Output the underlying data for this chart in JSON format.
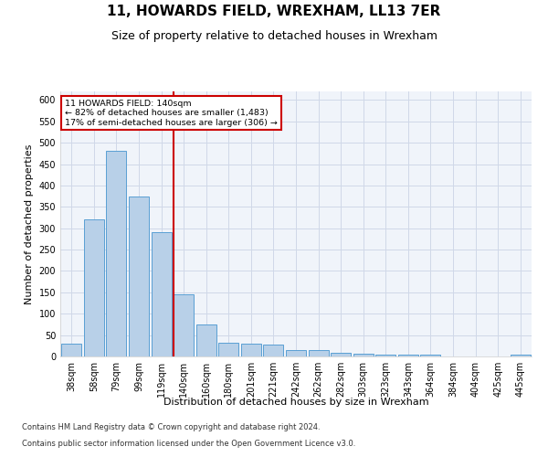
{
  "title": "11, HOWARDS FIELD, WREXHAM, LL13 7ER",
  "subtitle": "Size of property relative to detached houses in Wrexham",
  "xlabel": "Distribution of detached houses by size in Wrexham",
  "ylabel": "Number of detached properties",
  "categories": [
    "38sqm",
    "58sqm",
    "79sqm",
    "99sqm",
    "119sqm",
    "140sqm",
    "160sqm",
    "180sqm",
    "201sqm",
    "221sqm",
    "242sqm",
    "262sqm",
    "282sqm",
    "303sqm",
    "323sqm",
    "343sqm",
    "364sqm",
    "384sqm",
    "404sqm",
    "425sqm",
    "445sqm"
  ],
  "values": [
    30,
    320,
    480,
    375,
    290,
    145,
    75,
    32,
    29,
    27,
    15,
    15,
    8,
    6,
    5,
    5,
    5,
    0,
    0,
    0,
    5
  ],
  "bar_color": "#b8d0e8",
  "bar_edge_color": "#5a9fd4",
  "highlight_index": 5,
  "annotation_line1": "11 HOWARDS FIELD: 140sqm",
  "annotation_line2": "← 82% of detached houses are smaller (1,483)",
  "annotation_line3": "17% of semi-detached houses are larger (306) →",
  "annotation_box_color": "#ffffff",
  "annotation_box_edge_color": "#cc0000",
  "vline_color": "#cc0000",
  "ylim": [
    0,
    620
  ],
  "yticks": [
    0,
    50,
    100,
    150,
    200,
    250,
    300,
    350,
    400,
    450,
    500,
    550,
    600
  ],
  "footer1": "Contains HM Land Registry data © Crown copyright and database right 2024.",
  "footer2": "Contains public sector information licensed under the Open Government Licence v3.0.",
  "bg_color": "#f0f4fa",
  "grid_color": "#d0d8e8",
  "title_fontsize": 11,
  "subtitle_fontsize": 9,
  "axis_label_fontsize": 8,
  "tick_fontsize": 7,
  "footer_fontsize": 6
}
